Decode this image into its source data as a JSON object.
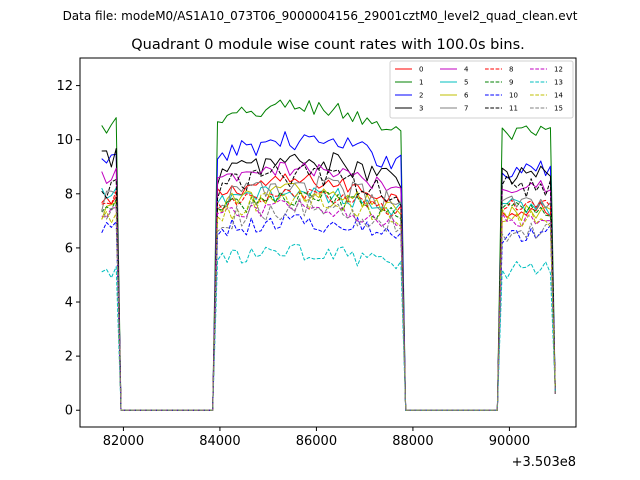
{
  "chart_data": {
    "type": "line",
    "suptitle": "Data file: modeM0/AS1A10_073T06_9000004156_29001cztM0_level2_quad_clean.evt",
    "title": "Quadrant 0 module wise count rates with 100.0s bins.",
    "xlabel": "",
    "ylabel": "",
    "x_offset_label": "+3.503e8",
    "x_offset": 350300000,
    "xlim": [
      81100,
      91380
    ],
    "ylim": [
      -0.62,
      13.02
    ],
    "x_ticks": [
      82000,
      84000,
      86000,
      88000,
      90000
    ],
    "x_tick_labels": [
      "82000",
      "84000",
      "86000",
      "88000",
      "90000"
    ],
    "y_ticks": [
      0,
      2,
      4,
      6,
      8,
      10,
      12
    ],
    "y_tick_labels": [
      "0",
      "2",
      "4",
      "6",
      "8",
      "10",
      "12"
    ],
    "grid": false,
    "legend_position": "upper-right",
    "legend_columns": 4,
    "segments": [
      {
        "start": 81550,
        "end": 81850,
        "step": 100
      },
      {
        "start": 81950,
        "end": 83850,
        "step": 100
      },
      {
        "start": 83950,
        "end": 87750,
        "step": 100
      },
      {
        "start": 87850,
        "end": 89750,
        "step": 100
      },
      {
        "start": 89850,
        "end": 90950,
        "step": 100
      }
    ],
    "series": [
      {
        "name": "0",
        "color": "#ff0000",
        "dash": "solid",
        "levels": [
          7.6,
          8.0,
          7.4
        ]
      },
      {
        "name": "1",
        "color": "#008000",
        "dash": "solid",
        "levels": [
          10.4,
          10.6,
          10.2
        ]
      },
      {
        "name": "2",
        "color": "#0000ff",
        "dash": "solid",
        "levels": [
          9.1,
          9.4,
          8.9
        ]
      },
      {
        "name": "3",
        "color": "#000000",
        "dash": "solid",
        "levels": [
          9.3,
          8.7,
          8.7
        ]
      },
      {
        "name": "4",
        "color": "#c000c0",
        "dash": "solid",
        "levels": [
          8.6,
          8.4,
          8.3
        ]
      },
      {
        "name": "5",
        "color": "#00bfbf",
        "dash": "solid",
        "levels": [
          7.9,
          7.6,
          7.5
        ]
      },
      {
        "name": "6",
        "color": "#bfbf00",
        "dash": "solid",
        "levels": [
          7.4,
          7.6,
          7.2
        ]
      },
      {
        "name": "7",
        "color": "#808080",
        "dash": "solid",
        "levels": [
          7.7,
          7.8,
          7.6
        ]
      },
      {
        "name": "8",
        "color": "#ff0000",
        "dash": "dashed",
        "levels": [
          7.8,
          7.5,
          7.6
        ]
      },
      {
        "name": "9",
        "color": "#008000",
        "dash": "dashed",
        "levels": [
          7.5,
          7.4,
          7.4
        ]
      },
      {
        "name": "10",
        "color": "#0000ff",
        "dash": "dashed",
        "levels": [
          6.7,
          6.6,
          6.5
        ]
      },
      {
        "name": "11",
        "color": "#000000",
        "dash": "dashed",
        "levels": [
          8.2,
          8.2,
          8.3
        ]
      },
      {
        "name": "12",
        "color": "#c000c0",
        "dash": "dashed",
        "levels": [
          7.2,
          7.1,
          7.0
        ]
      },
      {
        "name": "13",
        "color": "#00bfbf",
        "dash": "dashed",
        "levels": [
          5.1,
          5.5,
          5.2
        ]
      },
      {
        "name": "14",
        "color": "#bfbf00",
        "dash": "dashed",
        "levels": [
          7.0,
          7.3,
          7.1
        ]
      },
      {
        "name": "15",
        "color": "#808080",
        "dash": "dashed",
        "levels": [
          7.3,
          7.0,
          6.6
        ]
      }
    ]
  }
}
